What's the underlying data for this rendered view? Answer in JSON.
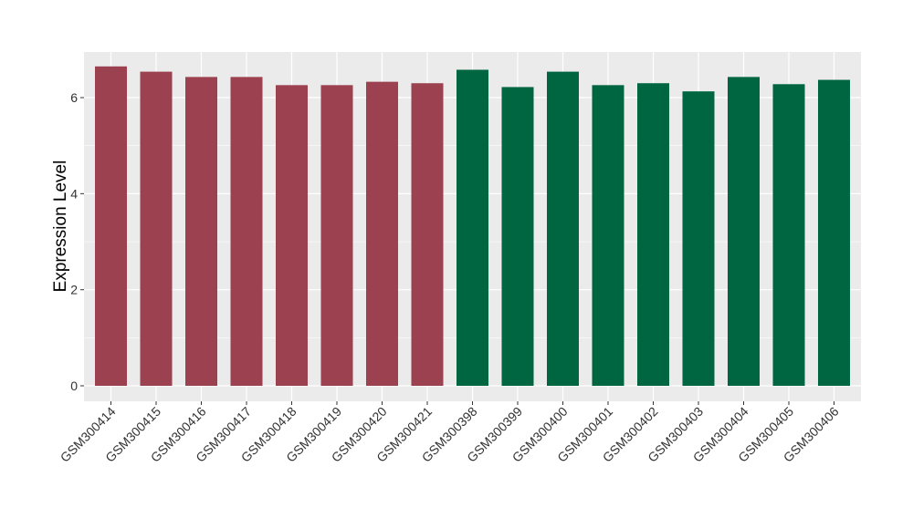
{
  "chart_data": {
    "type": "bar",
    "title": "",
    "xlabel": "",
    "ylabel": "Expression Level",
    "ylim": [
      0,
      6.95
    ],
    "yticks": [
      0,
      2,
      4,
      6
    ],
    "grid": true,
    "legend": "none",
    "colors": {
      "panel_background": "#EBEBEB",
      "grid_major": "#FFFFFF",
      "group_a": "#9B4150",
      "group_b": "#006641",
      "tick_text": "#333333"
    },
    "categories": [
      "GSM300414",
      "GSM300415",
      "GSM300416",
      "GSM300417",
      "GSM300418",
      "GSM300419",
      "GSM300420",
      "GSM300421",
      "GSM300398",
      "GSM300399",
      "GSM300400",
      "GSM300401",
      "GSM300402",
      "GSM300403",
      "GSM300404",
      "GSM300405",
      "GSM300406"
    ],
    "values": [
      6.65,
      6.54,
      6.43,
      6.43,
      6.26,
      6.26,
      6.33,
      6.3,
      6.58,
      6.22,
      6.54,
      6.26,
      6.3,
      6.13,
      6.43,
      6.28,
      6.37
    ],
    "groups": [
      "a",
      "a",
      "a",
      "a",
      "a",
      "a",
      "a",
      "a",
      "b",
      "b",
      "b",
      "b",
      "b",
      "b",
      "b",
      "b",
      "b"
    ]
  }
}
